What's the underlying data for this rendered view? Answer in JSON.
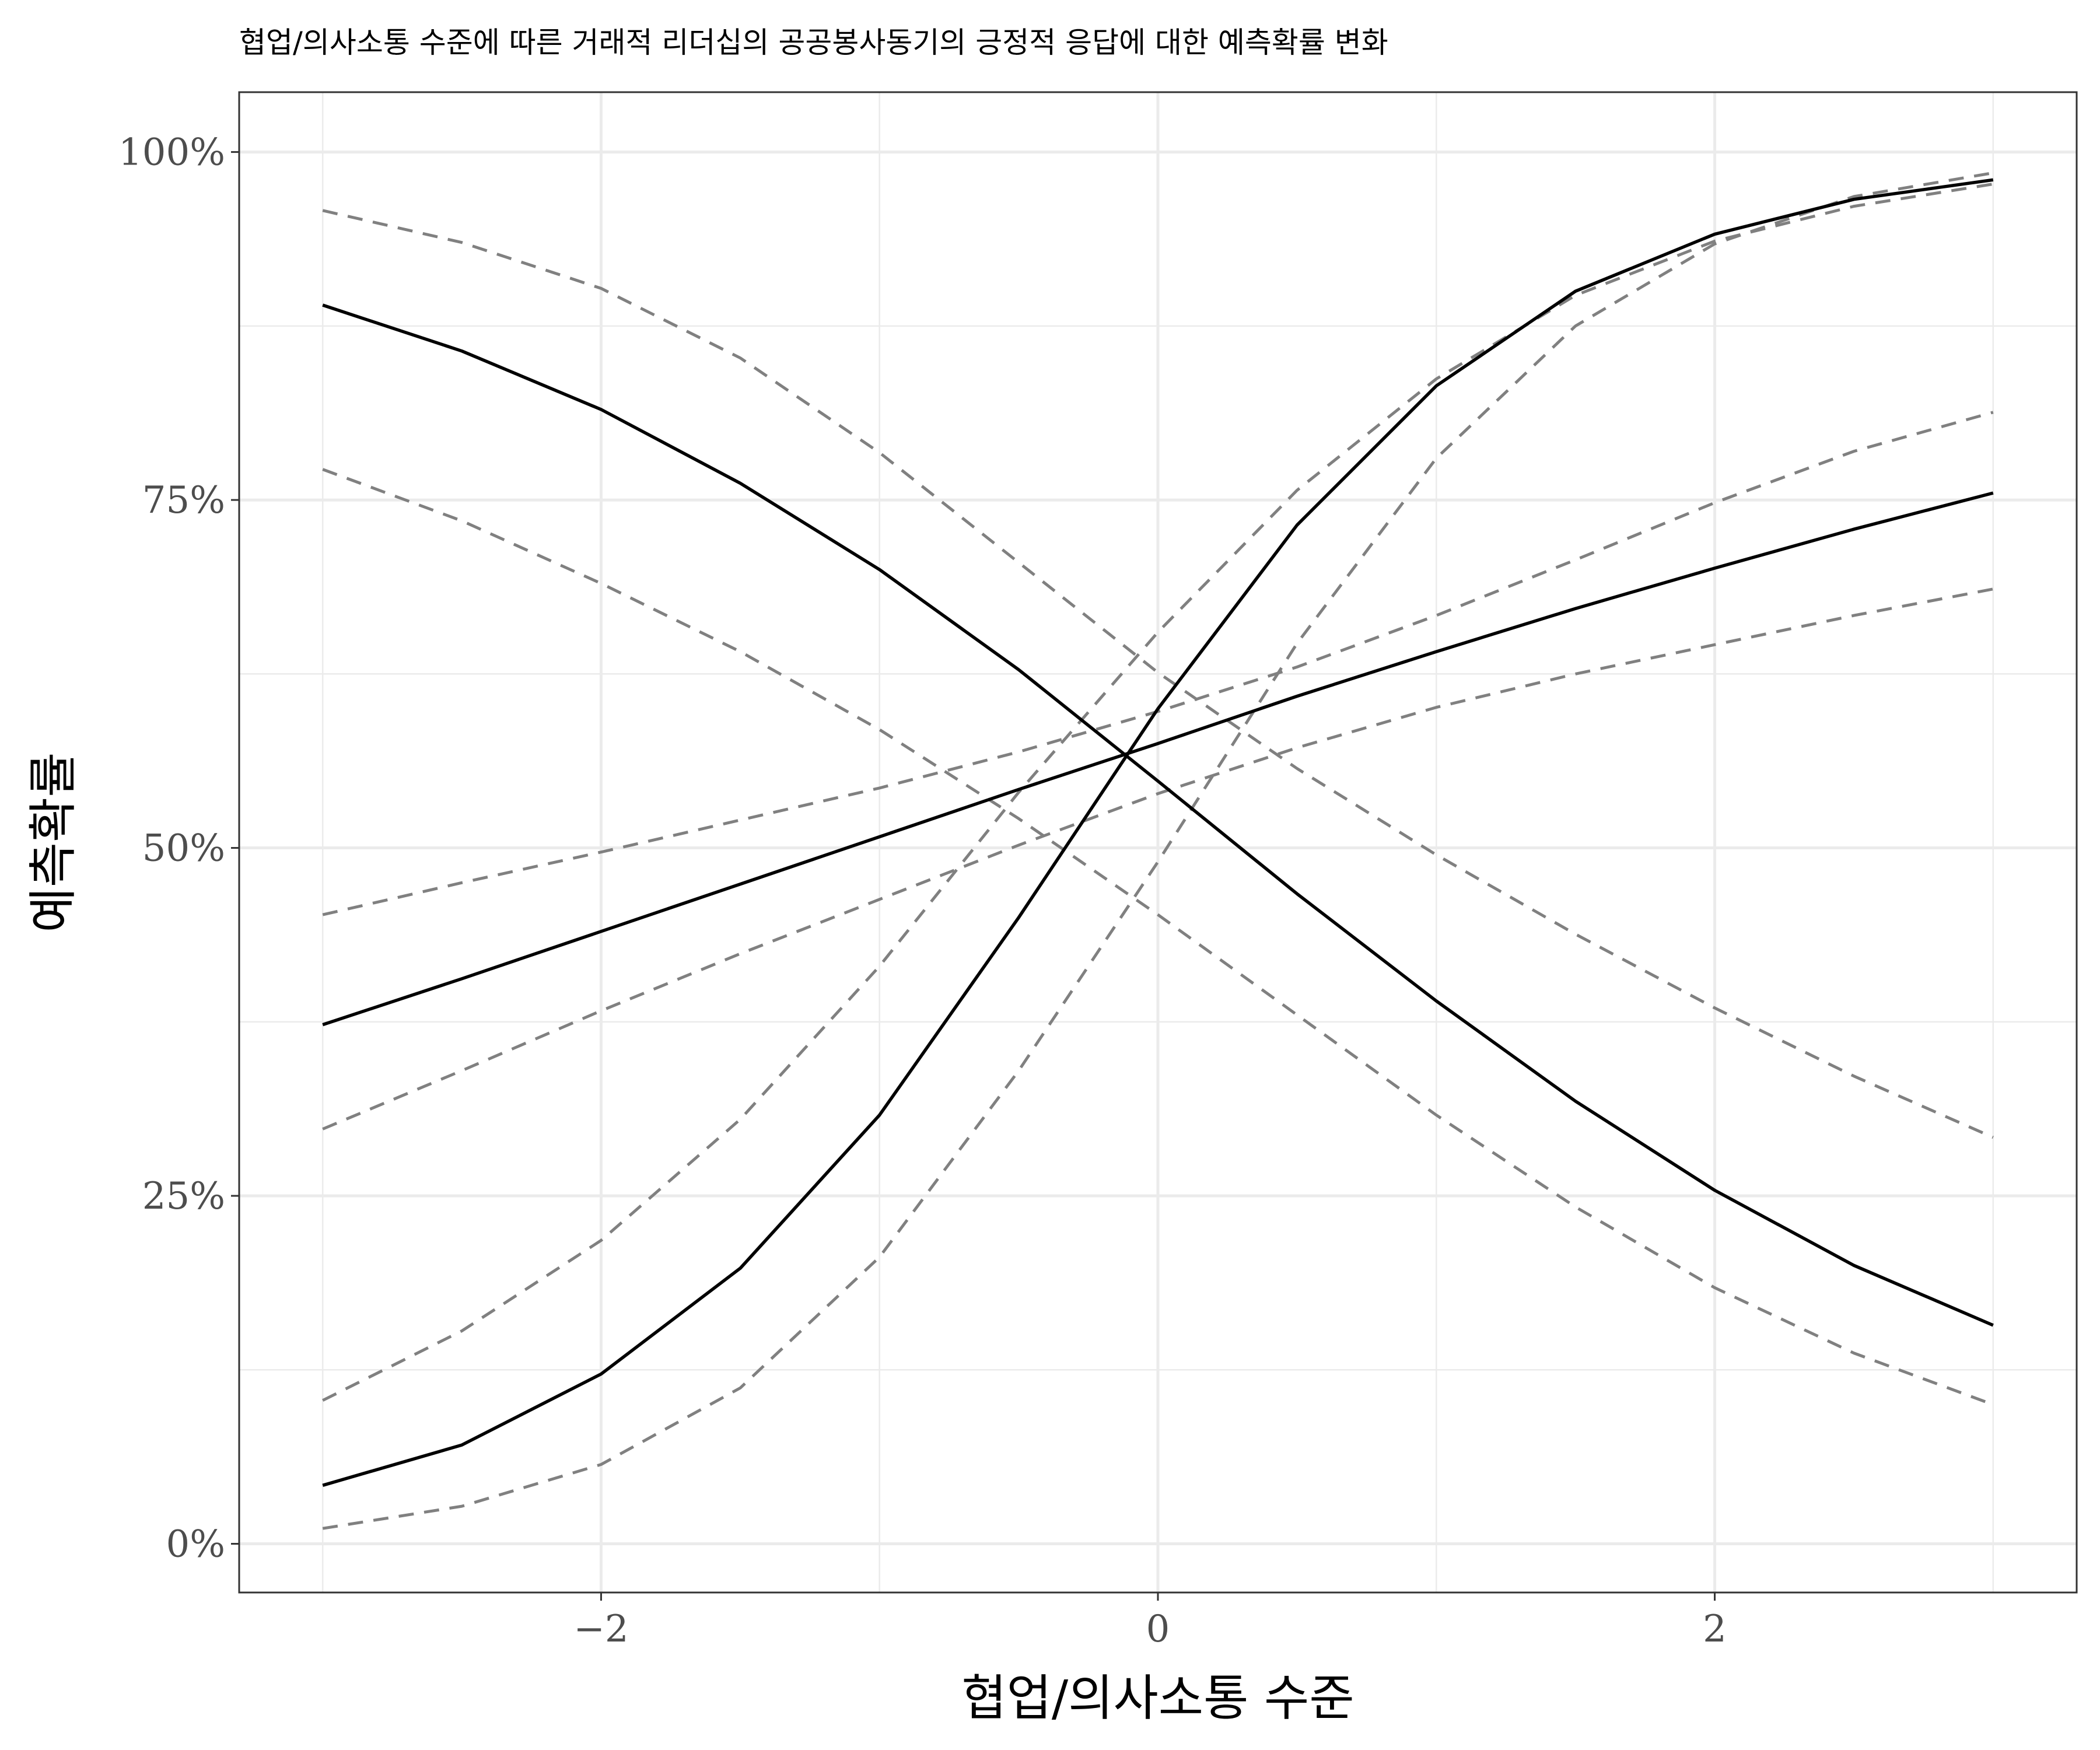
{
  "chart_data": {
    "type": "line",
    "title": "협업/의사소통 수준에 따른 거래적 리더십의 공공봉사동기의 긍정적 응답에 대한 예측확률 변화",
    "xlabel": "협업/의사소통 수준",
    "ylabel": "예측확률",
    "xlim": [
      -3.3,
      3.3
    ],
    "ylim": [
      -0.035,
      1.043
    ],
    "x_ticks": [
      -2,
      0,
      2
    ],
    "x_tick_labels": [
      "−2",
      "0",
      "2"
    ],
    "y_ticks": [
      0,
      0.25,
      0.5,
      0.75,
      1.0
    ],
    "y_tick_labels": [
      "0%",
      "25%",
      "50%",
      "75%",
      "100%"
    ],
    "x_minor_ticks": [
      -3,
      -1,
      1,
      3
    ],
    "y_minor_ticks": [
      0.125,
      0.375,
      0.625,
      0.875
    ],
    "grid": true,
    "legend": "none",
    "x": [
      -3,
      -2.5,
      -2,
      -1.5,
      -1,
      -0.5,
      0,
      0.5,
      1,
      1.5,
      2,
      2.5,
      3
    ],
    "series": [
      {
        "style": "solid",
        "color": "#000000",
        "values": [
          0.042,
          0.071,
          0.122,
          0.198,
          0.308,
          0.45,
          0.6,
          0.732,
          0.832,
          0.9,
          0.941,
          0.966,
          0.98
        ]
      },
      {
        "style": "dashed",
        "color": "#808080",
        "values": [
          0.103,
          0.153,
          0.218,
          0.305,
          0.415,
          0.54,
          0.655,
          0.757,
          0.837,
          0.897,
          0.936,
          0.961,
          0.977
        ]
      },
      {
        "style": "dashed",
        "color": "#808080",
        "values": [
          0.011,
          0.027,
          0.057,
          0.112,
          0.206,
          0.34,
          0.49,
          0.647,
          0.78,
          0.875,
          0.934,
          0.968,
          0.985
        ]
      },
      {
        "style": "solid",
        "color": "#000000",
        "values": [
          0.89,
          0.857,
          0.815,
          0.762,
          0.7,
          0.628,
          0.548,
          0.467,
          0.39,
          0.318,
          0.254,
          0.2,
          0.157
        ]
      },
      {
        "style": "dashed",
        "color": "#808080",
        "values": [
          0.958,
          0.935,
          0.902,
          0.852,
          0.784,
          0.705,
          0.626,
          0.557,
          0.495,
          0.438,
          0.385,
          0.336,
          0.292
        ]
      },
      {
        "style": "dashed",
        "color": "#808080",
        "values": [
          0.772,
          0.735,
          0.69,
          0.641,
          0.585,
          0.521,
          0.452,
          0.38,
          0.308,
          0.242,
          0.184,
          0.137,
          0.1
        ]
      },
      {
        "style": "solid",
        "color": "#000000",
        "values": [
          0.373,
          0.406,
          0.44,
          0.474,
          0.508,
          0.542,
          0.575,
          0.609,
          0.641,
          0.672,
          0.701,
          0.729,
          0.755
        ]
      },
      {
        "style": "dashed",
        "color": "#808080",
        "values": [
          0.452,
          0.475,
          0.497,
          0.52,
          0.543,
          0.569,
          0.598,
          0.63,
          0.667,
          0.707,
          0.748,
          0.785,
          0.813
        ]
      },
      {
        "style": "dashed",
        "color": "#808080",
        "values": [
          0.298,
          0.34,
          0.383,
          0.424,
          0.463,
          0.502,
          0.539,
          0.572,
          0.601,
          0.625,
          0.646,
          0.667,
          0.686
        ]
      }
    ]
  }
}
